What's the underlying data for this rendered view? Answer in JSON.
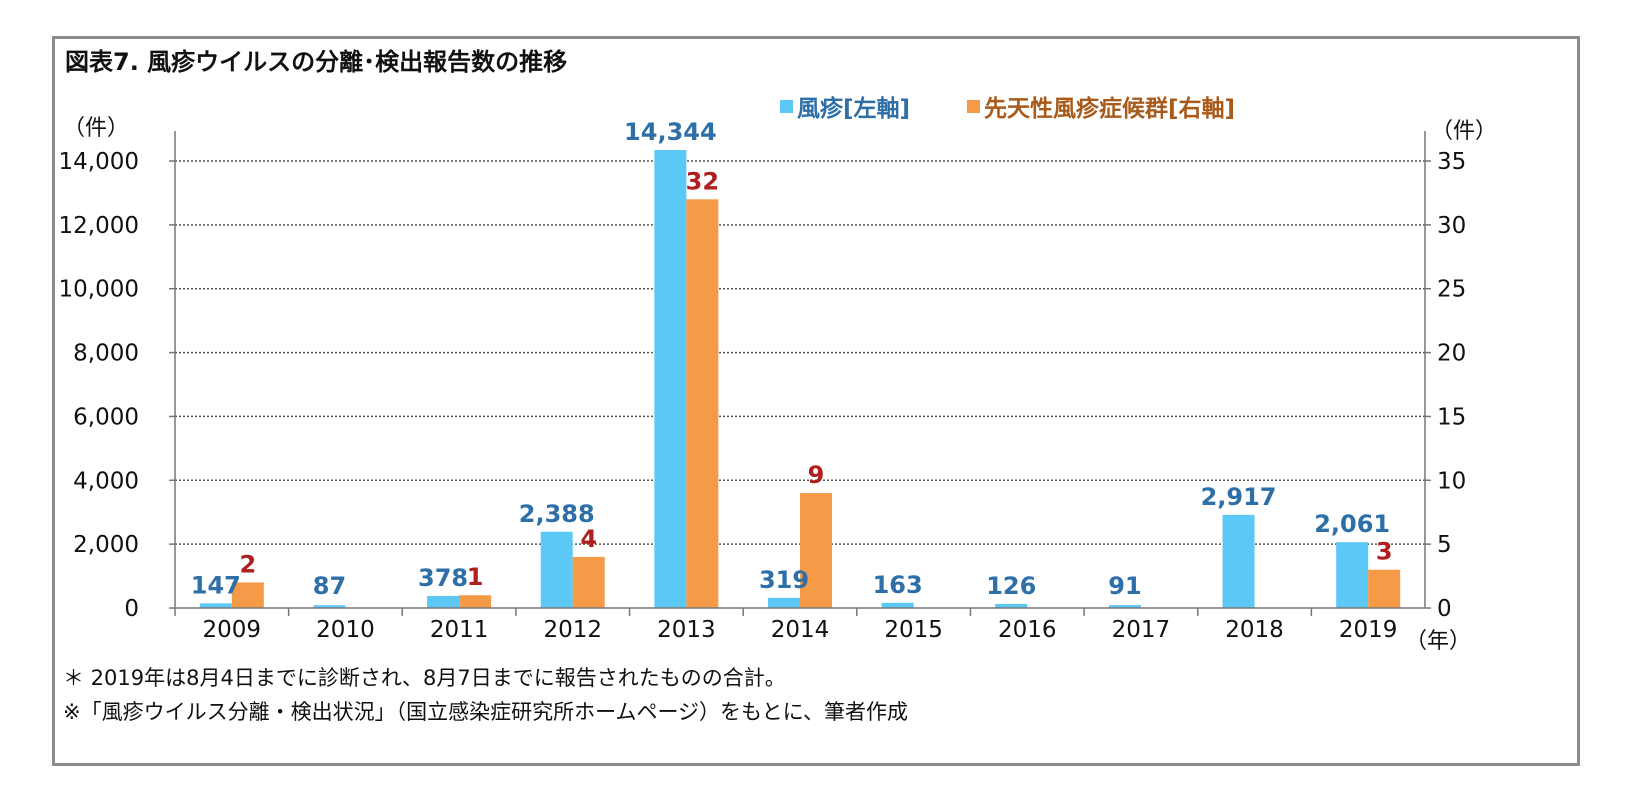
{
  "title": "図表7.  風疹ウイルスの分離･検出報告数の推移",
  "left_unit": "（件）",
  "right_unit": "（件）",
  "x_unit": "（年）",
  "legend": {
    "rubella": "風疹[左軸]",
    "crs": "先天性風疹症候群[右軸]"
  },
  "notes": {
    "line1": "＊ 2019年は8月4日までに診断され、8月7日までに報告されたものの合計。",
    "line2": "※「風疹ウイルス分離・検出状況」（国立感染症研究所ホームページ）をもとに、筆者作成"
  },
  "colors": {
    "rubella": "#5bc8f5",
    "crs": "#f59a46",
    "rubella_label": "#2e6fa8",
    "crs_label": "#b01e1e",
    "grid": "#555555",
    "frame": "#8c8c8c"
  },
  "chart_data": {
    "type": "bar",
    "categories": [
      "2009",
      "2010",
      "2011",
      "2012",
      "2013",
      "2014",
      "2015",
      "2016",
      "2017",
      "2018",
      "2019"
    ],
    "series": [
      {
        "name": "風疹[左軸]",
        "axis": "left",
        "values": [
          147,
          87,
          378,
          2388,
          14344,
          319,
          163,
          126,
          91,
          2917,
          2061
        ],
        "labels": [
          "147",
          "87",
          "378",
          "2,388",
          "14,344",
          "319",
          "163",
          "126",
          "91",
          "2,917",
          "2,061"
        ]
      },
      {
        "name": "先天性風疹症候群[右軸]",
        "axis": "right",
        "values": [
          2,
          0,
          1,
          4,
          32,
          9,
          0,
          0,
          0,
          0,
          3
        ],
        "labels": [
          "2",
          "",
          "1",
          "4",
          "32",
          "9",
          "",
          "",
          "",
          "",
          "3"
        ]
      }
    ],
    "ylim_left": [
      0,
      14000
    ],
    "ylim_right": [
      0,
      35
    ],
    "yticks_left": [
      "0",
      "2,000",
      "4,000",
      "6,000",
      "8,000",
      "10,000",
      "12,000",
      "14,000"
    ],
    "yticks_right": [
      "0",
      "5",
      "10",
      "15",
      "20",
      "25",
      "30",
      "35"
    ],
    "grid": "dotted horizontal",
    "legend_position": "top-center"
  }
}
